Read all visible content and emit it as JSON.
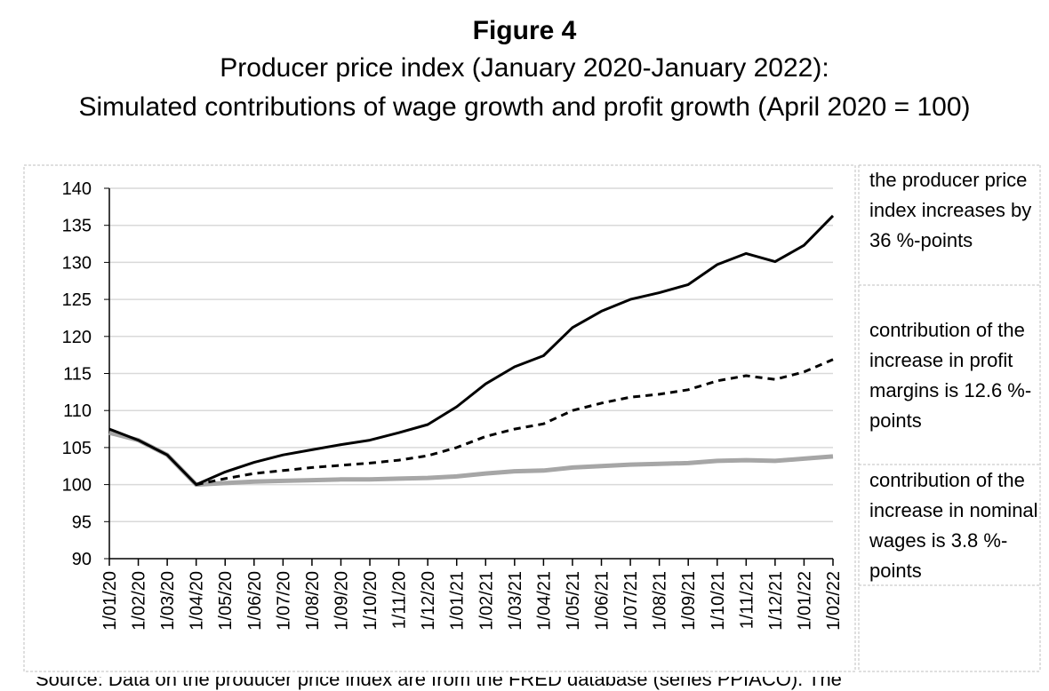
{
  "figure": {
    "label": "Figure 4",
    "subtitle_1": "Producer price index (January 2020-January 2022):",
    "subtitle_2": "Simulated contributions of wage growth and profit growth (April 2020 = 100)"
  },
  "notes": {
    "ppi": "the producer price index increases by 36 %-points",
    "profit": "contribution of the increase in profit margins is 12.6 %-points",
    "wages": "contribution of the increase in nominal wages is 3.8 %-points"
  },
  "source_fragment": "Source: Data on the producer price index are from the FRED database (series PPIACO). The",
  "chart_data": {
    "type": "line",
    "ylim": [
      90,
      140
    ],
    "yticks": [
      90,
      95,
      100,
      105,
      110,
      115,
      120,
      125,
      130,
      135,
      140
    ],
    "grid": true,
    "categories": [
      "1/01/20",
      "1/02/20",
      "1/03/20",
      "1/04/20",
      "1/05/20",
      "1/06/20",
      "1/07/20",
      "1/08/20",
      "1/09/20",
      "1/10/20",
      "1/11/20",
      "1/12/20",
      "1/01/21",
      "1/02/21",
      "1/03/21",
      "1/04/21",
      "1/05/21",
      "1/06/21",
      "1/07/21",
      "1/08/21",
      "1/09/21",
      "1/10/21",
      "1/11/21",
      "1/12/21",
      "1/01/22",
      "1/02/22"
    ],
    "series": [
      {
        "color": "#000000",
        "style": "solid",
        "width": 3,
        "values": [
          107.5,
          106,
          104,
          100,
          101.7,
          103,
          104,
          104.7,
          105.4,
          106,
          107,
          108.1,
          110.5,
          113.6,
          115.9,
          117.4,
          121.2,
          123.4,
          125,
          125.9,
          127,
          129.7,
          131.2,
          130.1,
          132.3,
          136.3
        ]
      },
      {
        "color": "#000000",
        "style": "dashed",
        "width": 3,
        "values": [
          null,
          null,
          null,
          100,
          100.8,
          101.5,
          101.9,
          102.3,
          102.6,
          102.9,
          103.3,
          103.9,
          105,
          106.5,
          107.5,
          108.2,
          110,
          111,
          111.8,
          112.2,
          112.8,
          114,
          114.7,
          114.2,
          115.2,
          116.9
        ]
      },
      {
        "color": "#a6a6a6",
        "style": "solid",
        "width": 5,
        "values": [
          107,
          106,
          104,
          100,
          100.2,
          100.4,
          100.5,
          100.6,
          100.7,
          100.7,
          100.8,
          100.9,
          101.1,
          101.5,
          101.8,
          101.9,
          102.3,
          102.5,
          102.7,
          102.8,
          102.9,
          103.2,
          103.3,
          103.2,
          103.5,
          103.8
        ]
      }
    ]
  }
}
